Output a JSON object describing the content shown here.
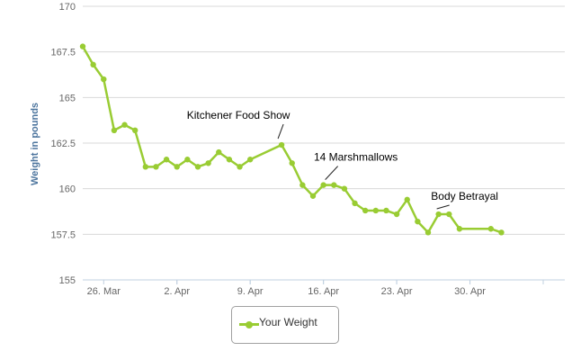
{
  "chart_data": {
    "type": "line",
    "title": "",
    "xlabel": "",
    "ylabel": "Weight in pounds",
    "ylim": [
      155,
      170
    ],
    "y_ticks": [
      155,
      157.5,
      160,
      162.5,
      165,
      167.5,
      170
    ],
    "y_tick_labels": [
      "155",
      "157.5",
      "160",
      "162.5",
      "165",
      "167.5",
      "170"
    ],
    "xlim": [
      "2012-03-26",
      "2012-05-07"
    ],
    "x_ticks": [
      "2012-03-26",
      "2012-04-02",
      "2012-04-09",
      "2012-04-16",
      "2012-04-23",
      "2012-04-30"
    ],
    "x_tick_labels": [
      "26. Mar",
      "2. Apr",
      "9. Apr",
      "16. Apr",
      "23. Apr",
      "30. Apr"
    ],
    "grid": "horizontal",
    "legend_position": "bottom",
    "color": "#99cc33",
    "series": [
      {
        "name": "Your Weight",
        "x": [
          "2012-03-24",
          "2012-03-25",
          "2012-03-26",
          "2012-03-27",
          "2012-03-28",
          "2012-03-29",
          "2012-03-30",
          "2012-03-31",
          "2012-04-01",
          "2012-04-02",
          "2012-04-03",
          "2012-04-04",
          "2012-04-05",
          "2012-04-06",
          "2012-04-07",
          "2012-04-08",
          "2012-04-09",
          "2012-04-12",
          "2012-04-13",
          "2012-04-14",
          "2012-04-15",
          "2012-04-16",
          "2012-04-17",
          "2012-04-18",
          "2012-04-19",
          "2012-04-20",
          "2012-04-21",
          "2012-04-22",
          "2012-04-23",
          "2012-04-24",
          "2012-04-25",
          "2012-04-26",
          "2012-04-27",
          "2012-04-28",
          "2012-04-29",
          "2012-05-02",
          "2012-05-03"
        ],
        "y": [
          167.8,
          166.8,
          166.0,
          163.2,
          163.5,
          163.2,
          161.2,
          161.2,
          161.6,
          161.2,
          161.6,
          161.2,
          161.4,
          162.0,
          161.6,
          161.2,
          161.6,
          162.4,
          161.4,
          160.2,
          159.6,
          160.2,
          160.2,
          160.0,
          159.2,
          158.8,
          158.8,
          158.8,
          158.6,
          159.4,
          158.2,
          157.6,
          158.6,
          158.6,
          157.8,
          157.8,
          157.6
        ]
      }
    ],
    "annotations": [
      {
        "text": "Kitchener Food Show",
        "x": "2012-04-12",
        "y": 162.4
      },
      {
        "text": "14 Marshmallows",
        "x": "2012-04-16",
        "y": 160.2
      },
      {
        "text": "Body Betrayal",
        "x": "2012-04-27",
        "y": 158.6
      }
    ]
  }
}
